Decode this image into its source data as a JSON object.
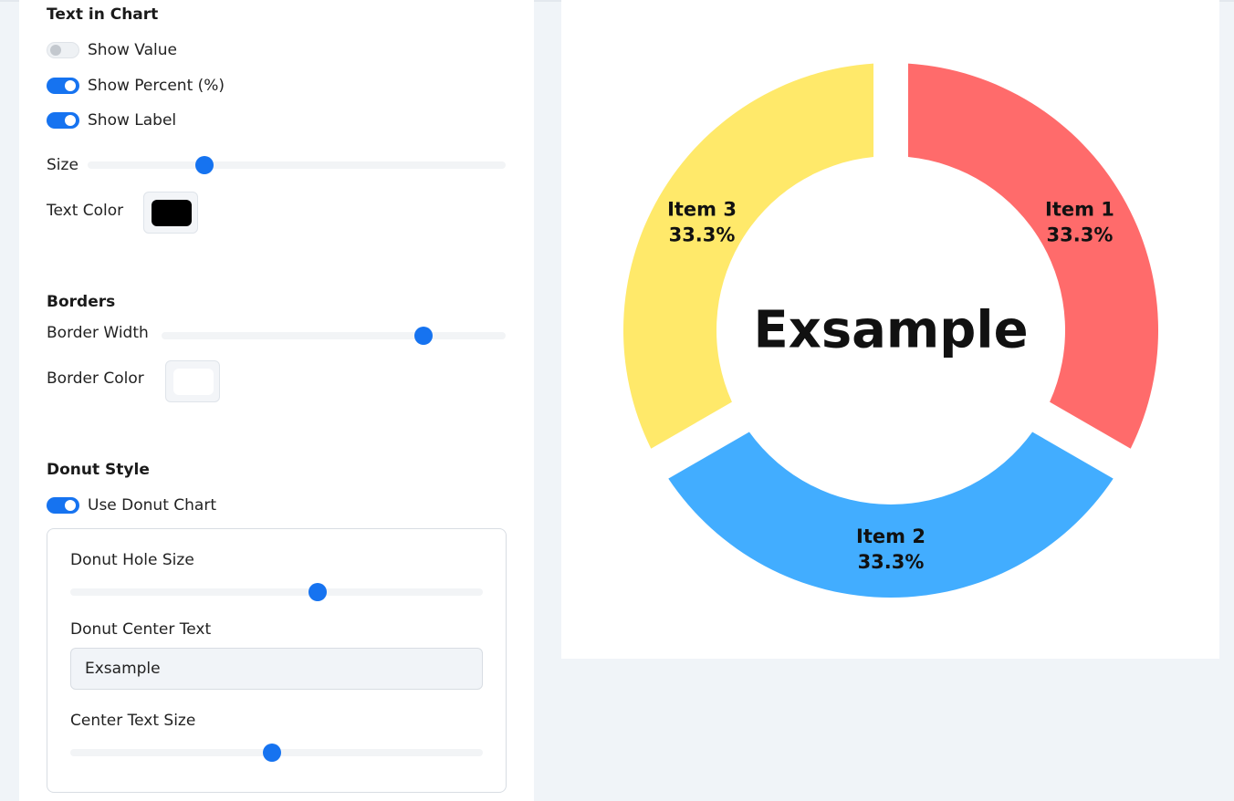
{
  "text_in_chart": {
    "title": "Text in Chart",
    "show_value": {
      "label": "Show Value",
      "on": false
    },
    "show_percent": {
      "label": "Show Percent (%)",
      "on": true
    },
    "show_label": {
      "label": "Show Label",
      "on": true
    },
    "size_label": "Size",
    "size_level": 0.28,
    "text_color_label": "Text Color",
    "text_color": "#000000"
  },
  "borders": {
    "title": "Borders",
    "width_label": "Border Width",
    "width_level": 0.76,
    "color_label": "Border Color",
    "color": "#ffffff"
  },
  "donut_style": {
    "title": "Donut Style",
    "use_donut": {
      "label": "Use Donut Chart",
      "on": true
    },
    "hole_size_label": "Donut Hole Size",
    "hole_size_level": 0.6,
    "center_text_label": "Donut Center Text",
    "center_text_value": "Exsample",
    "center_text_size_label": "Center Text Size",
    "center_text_size_level": 0.49
  },
  "chart_data": {
    "type": "pie",
    "donut": true,
    "center_text": "Exsample",
    "categories": [
      "Item 1",
      "Item 2",
      "Item 3"
    ],
    "values": [
      1,
      1,
      1
    ],
    "percent_labels": [
      "33.3%",
      "33.3%",
      "33.3%"
    ],
    "colors": [
      "#ff6b6b",
      "#42adff",
      "#ffe96a"
    ]
  }
}
